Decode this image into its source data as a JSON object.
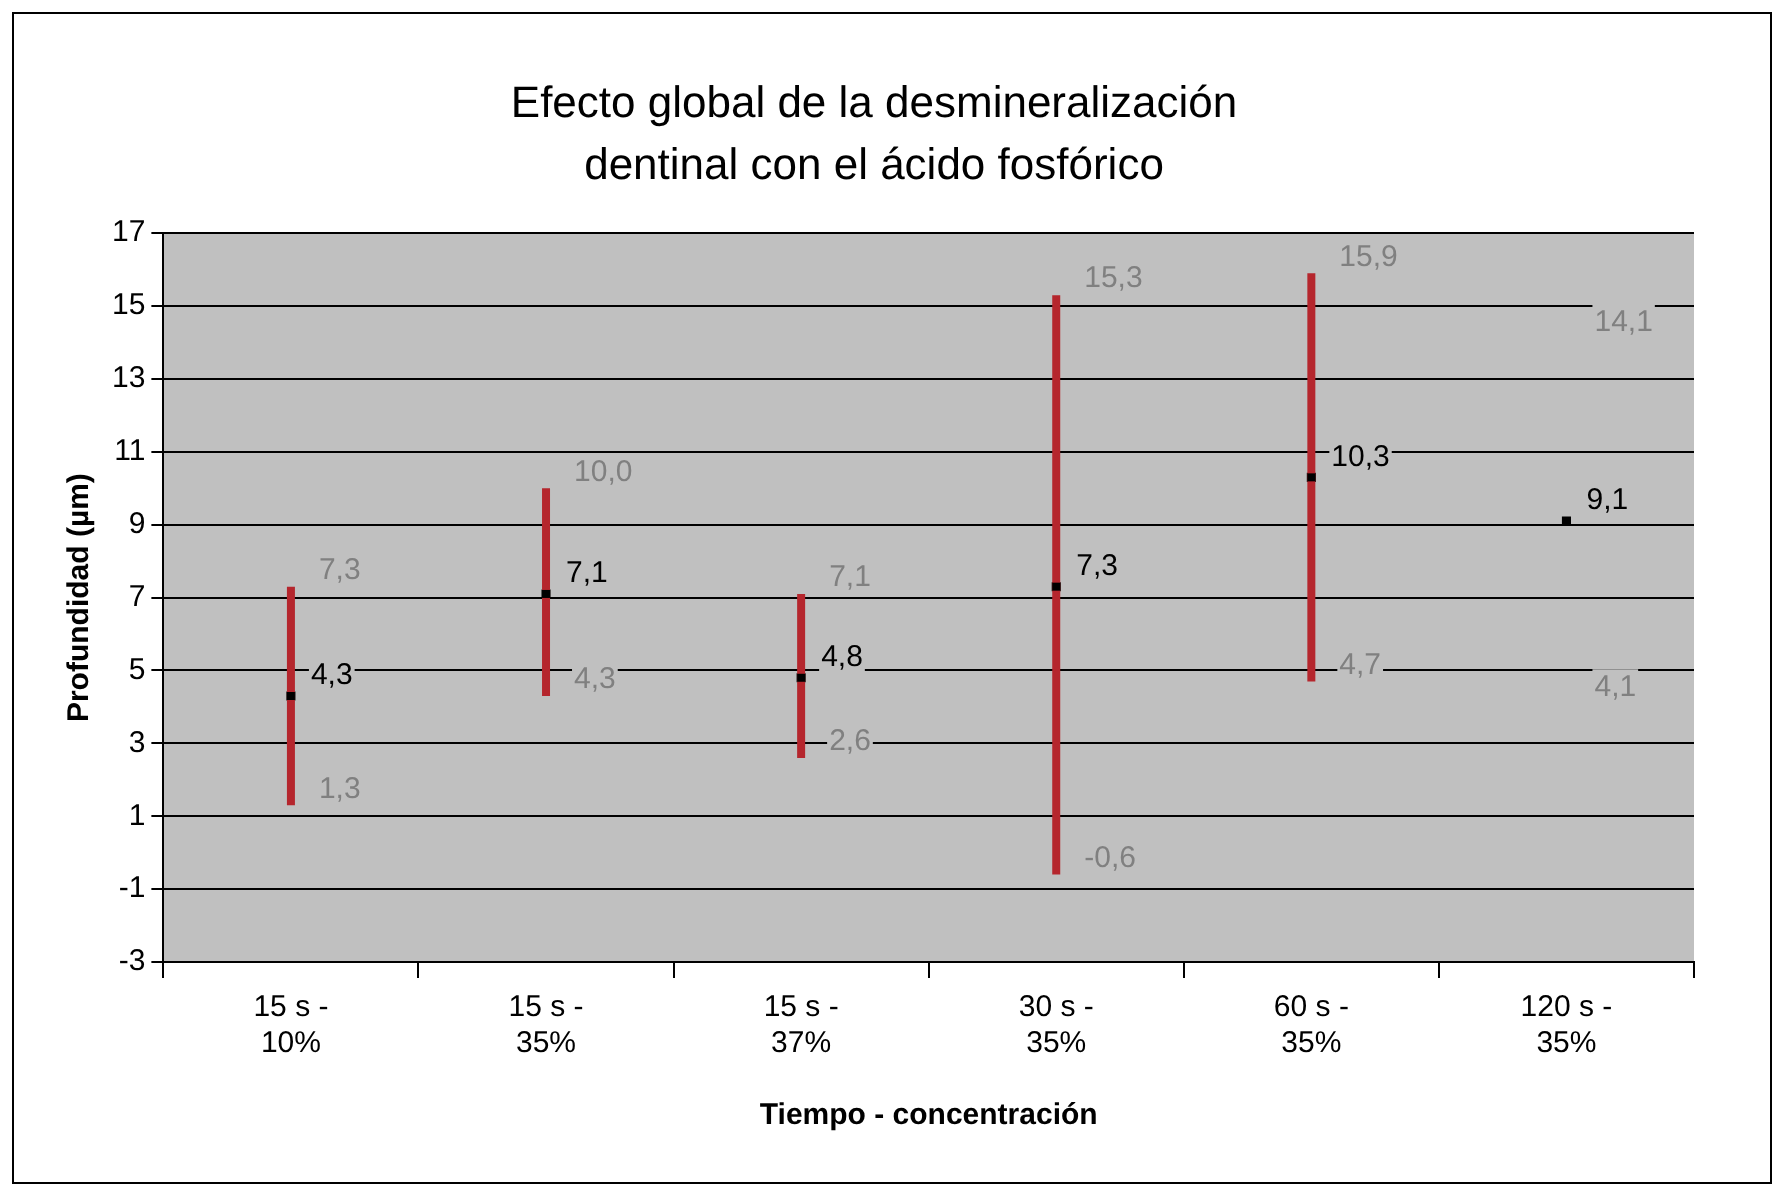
{
  "chart_data": {
    "type": "scatter",
    "title": "Efecto global de la desmineralización dentinal con el ácido fosfórico",
    "xlabel": "Tiempo - concentración",
    "ylabel": "Profundidad (µm)",
    "categories": [
      "15 s - 10%",
      "15 s - 35%",
      "15 s - 37%",
      "30 s - 35%",
      "60 s - 35%",
      "120 s - 35%"
    ],
    "series": [
      {
        "color": "#000000",
        "values": [
          4.3,
          7.1,
          4.8,
          7.3,
          10.3,
          9.1
        ],
        "errors": [
          [
            1.3,
            7.3
          ],
          [
            4.3,
            10.0
          ],
          [
            2.6,
            7.1
          ],
          [
            -0.6,
            15.3
          ],
          [
            4.7,
            15.9
          ],
          null
        ],
        "value_labels": [
          "4,3",
          "7,1",
          "4,8",
          "7,3",
          "10,3",
          "9,1"
        ]
      }
    ],
    "annotations": [
      {
        "text": "7,3",
        "x": "15 s - 10%",
        "y": 7.3
      },
      {
        "text": "1,3",
        "x": "15 s - 10%",
        "y": 1.3
      },
      {
        "text": "10,0",
        "x": "15 s - 35%",
        "y": 10.0
      },
      {
        "text": "4,3",
        "x": "15 s - 35%",
        "y": 4.3
      },
      {
        "text": "7,1",
        "x": "15 s - 37%",
        "y": 7.1
      },
      {
        "text": "2,6",
        "x": "15 s - 37%",
        "y": 2.6
      },
      {
        "text": "15,3",
        "x": "30 s - 35%",
        "y": 15.3
      },
      {
        "text": "-0,6",
        "x": "30 s - 35%",
        "y": -0.6
      },
      {
        "text": "15,9",
        "x": "60 s - 35%",
        "y": 15.9
      },
      {
        "text": "4,7",
        "x": "60 s - 35%",
        "y": 4.7
      },
      "14,1",
      "4,1"
    ],
    "ylim": [
      -3,
      17
    ],
    "yticks": [
      -3,
      -1,
      1,
      3,
      5,
      7,
      9,
      11,
      13,
      15,
      17
    ],
    "grid": "y",
    "legend": false,
    "marker": "square"
  }
}
